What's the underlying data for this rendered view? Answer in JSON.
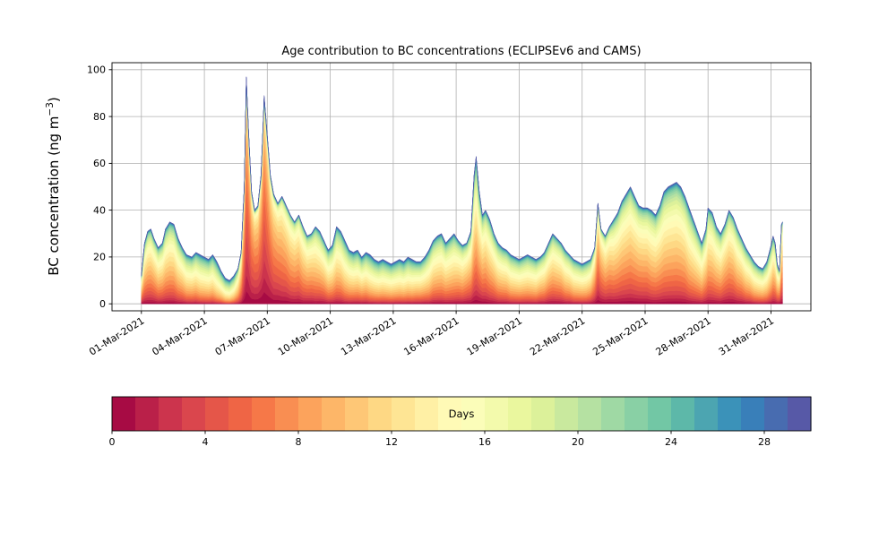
{
  "chart_data": {
    "type": "area",
    "subtype": "stacked-area-by-age",
    "title": "Age contribution to BC concentrations (ECLIPSEv6 and CAMS)",
    "xlabel": "",
    "ylabel": "BC concentration (ng m−3)",
    "ylabel_parts": {
      "prefix": "BC concentration (ng m",
      "sup": "−3",
      "suffix": ")"
    },
    "ylim": [
      -3,
      103
    ],
    "xlim_days": [
      -1.4,
      31.9
    ],
    "yticks": [
      0,
      20,
      40,
      60,
      80,
      100
    ],
    "xtick_days": [
      0,
      3,
      6,
      9,
      12,
      15,
      18,
      21,
      24,
      27,
      30
    ],
    "xtick_labels": [
      "01-Mar-2021",
      "04-Mar-2021",
      "07-Mar-2021",
      "10-Mar-2021",
      "13-Mar-2021",
      "16-Mar-2021",
      "19-Mar-2021",
      "22-Mar-2021",
      "25-Mar-2021",
      "28-Mar-2021",
      "31-Mar-2021"
    ],
    "grid": true,
    "n_age_bins": 30,
    "age_bin_width_days": 1,
    "colormap_stops": [
      "#9e0142",
      "#d53e4f",
      "#f46d43",
      "#fdae61",
      "#fee08b",
      "#ffffbf",
      "#e6f598",
      "#abdda4",
      "#66c2a5",
      "#3288bd",
      "#5e4fa2"
    ],
    "colorbar": {
      "label": "Days",
      "vmin": 0,
      "vmax": 30,
      "segments": 30,
      "ticks": [
        0,
        4,
        8,
        12,
        16,
        20,
        24,
        28
      ],
      "orientation": "horizontal"
    },
    "keyframe_format": [
      "time_days_since_01_Mar_2021",
      "total_bc_ng_m3",
      "mean_age_days",
      "age_spread_days"
    ],
    "keyframes": [
      [
        0.0,
        12,
        10,
        7
      ],
      [
        0.15,
        26,
        10,
        7
      ],
      [
        0.3,
        31,
        10,
        7
      ],
      [
        0.45,
        32,
        10,
        7
      ],
      [
        0.6,
        28,
        10,
        7
      ],
      [
        0.8,
        24,
        11,
        7
      ],
      [
        1.0,
        26,
        11,
        7
      ],
      [
        1.15,
        32,
        11,
        7
      ],
      [
        1.35,
        35,
        11,
        7
      ],
      [
        1.55,
        34,
        11,
        7
      ],
      [
        1.75,
        28,
        12,
        7
      ],
      [
        1.95,
        24,
        12,
        7
      ],
      [
        2.15,
        21,
        13,
        7
      ],
      [
        2.4,
        20,
        13,
        7
      ],
      [
        2.6,
        22,
        13,
        7
      ],
      [
        2.8,
        21,
        14,
        7
      ],
      [
        3.0,
        20,
        14,
        7
      ],
      [
        3.2,
        19,
        14,
        7
      ],
      [
        3.4,
        21,
        14,
        7
      ],
      [
        3.6,
        18,
        15,
        7
      ],
      [
        3.8,
        14,
        15,
        7
      ],
      [
        4.0,
        11,
        16,
        7
      ],
      [
        4.2,
        10,
        16,
        7
      ],
      [
        4.4,
        12,
        15,
        7
      ],
      [
        4.6,
        15,
        12,
        6
      ],
      [
        4.75,
        22,
        9,
        5
      ],
      [
        4.9,
        50,
        6,
        4.5
      ],
      [
        5.0,
        97,
        5,
        4
      ],
      [
        5.1,
        75,
        5,
        4
      ],
      [
        5.25,
        48,
        6,
        4.5
      ],
      [
        5.4,
        40,
        6,
        5
      ],
      [
        5.55,
        42,
        6,
        5
      ],
      [
        5.7,
        55,
        5.5,
        4.5
      ],
      [
        5.85,
        89,
        5,
        4
      ],
      [
        6.0,
        72,
        5.5,
        4.5
      ],
      [
        6.15,
        55,
        6,
        5
      ],
      [
        6.3,
        47,
        7,
        5
      ],
      [
        6.5,
        43,
        7,
        5.5
      ],
      [
        6.7,
        46,
        8,
        5.5
      ],
      [
        6.9,
        42,
        8,
        6
      ],
      [
        7.1,
        38,
        9,
        6
      ],
      [
        7.3,
        35,
        9,
        6
      ],
      [
        7.5,
        38,
        9,
        6
      ],
      [
        7.7,
        33,
        10,
        6
      ],
      [
        7.9,
        29,
        10,
        6.5
      ],
      [
        8.1,
        30,
        10,
        6.5
      ],
      [
        8.3,
        33,
        11,
        6.5
      ],
      [
        8.5,
        31,
        11,
        7
      ],
      [
        8.7,
        27,
        11,
        7
      ],
      [
        8.9,
        23,
        12,
        7
      ],
      [
        9.1,
        25,
        12,
        7
      ],
      [
        9.3,
        33,
        12,
        7
      ],
      [
        9.5,
        31,
        12,
        7
      ],
      [
        9.7,
        27,
        13,
        7
      ],
      [
        9.9,
        23,
        13,
        7
      ],
      [
        10.1,
        22,
        13,
        7.5
      ],
      [
        10.3,
        23,
        13,
        7.5
      ],
      [
        10.5,
        20,
        13,
        7.5
      ],
      [
        10.7,
        22,
        13,
        7.5
      ],
      [
        10.9,
        21,
        14,
        7.5
      ],
      [
        11.1,
        19,
        14,
        7.5
      ],
      [
        11.3,
        18,
        14,
        7.5
      ],
      [
        11.5,
        19,
        14,
        7.5
      ],
      [
        11.7,
        18,
        14,
        7.5
      ],
      [
        11.9,
        17,
        14,
        7.5
      ],
      [
        12.1,
        18,
        14,
        7.5
      ],
      [
        12.3,
        19,
        14,
        7.5
      ],
      [
        12.5,
        18,
        14,
        7.5
      ],
      [
        12.7,
        20,
        14,
        7.5
      ],
      [
        12.9,
        19,
        14,
        7.5
      ],
      [
        13.1,
        18,
        13,
        7.5
      ],
      [
        13.3,
        18,
        13,
        7.5
      ],
      [
        13.5,
        20,
        13,
        7.5
      ],
      [
        13.7,
        23,
        13,
        7
      ],
      [
        13.9,
        27,
        12,
        7
      ],
      [
        14.1,
        29,
        12,
        7
      ],
      [
        14.3,
        30,
        12,
        7
      ],
      [
        14.5,
        26,
        12,
        7
      ],
      [
        14.7,
        28,
        12,
        7
      ],
      [
        14.9,
        30,
        12,
        7
      ],
      [
        15.1,
        27,
        11,
        7
      ],
      [
        15.3,
        25,
        11,
        7
      ],
      [
        15.5,
        26,
        10,
        7
      ],
      [
        15.7,
        31,
        10,
        7
      ],
      [
        15.85,
        55,
        10,
        7.5
      ],
      [
        15.95,
        63,
        10,
        8
      ],
      [
        16.1,
        48,
        10,
        8
      ],
      [
        16.25,
        38,
        10,
        7.5
      ],
      [
        16.4,
        40,
        10,
        7
      ],
      [
        16.6,
        36,
        11,
        7
      ],
      [
        16.8,
        30,
        11,
        7
      ],
      [
        17.0,
        26,
        12,
        7
      ],
      [
        17.2,
        24,
        12,
        7
      ],
      [
        17.4,
        23,
        12,
        7
      ],
      [
        17.6,
        21,
        13,
        7
      ],
      [
        17.8,
        20,
        13,
        7
      ],
      [
        18.0,
        19,
        13,
        7
      ],
      [
        18.2,
        20,
        13,
        7
      ],
      [
        18.4,
        21,
        13,
        7
      ],
      [
        18.6,
        20,
        13,
        7
      ],
      [
        18.8,
        19,
        13,
        7
      ],
      [
        19.0,
        20,
        12,
        7
      ],
      [
        19.2,
        22,
        12,
        7
      ],
      [
        19.4,
        26,
        11,
        7
      ],
      [
        19.6,
        30,
        11,
        7
      ],
      [
        19.8,
        28,
        11,
        7
      ],
      [
        20.0,
        26,
        11,
        7
      ],
      [
        20.2,
        23,
        12,
        7
      ],
      [
        20.4,
        21,
        12,
        7
      ],
      [
        20.6,
        19,
        13,
        7
      ],
      [
        20.8,
        18,
        13,
        7
      ],
      [
        21.0,
        17,
        13,
        7
      ],
      [
        21.2,
        18,
        13,
        7
      ],
      [
        21.4,
        19,
        12,
        7
      ],
      [
        21.6,
        24,
        9,
        6
      ],
      [
        21.75,
        43,
        7,
        6
      ],
      [
        21.9,
        32,
        8,
        6
      ],
      [
        22.1,
        29,
        9,
        6.5
      ],
      [
        22.3,
        33,
        9,
        6.5
      ],
      [
        22.5,
        36,
        10,
        7
      ],
      [
        22.7,
        39,
        10,
        7
      ],
      [
        22.9,
        44,
        10,
        7
      ],
      [
        23.1,
        47,
        10,
        7
      ],
      [
        23.3,
        50,
        10,
        7
      ],
      [
        23.5,
        46,
        10,
        7
      ],
      [
        23.7,
        42,
        10,
        7
      ],
      [
        23.9,
        41,
        10,
        7
      ],
      [
        24.1,
        41,
        10,
        7
      ],
      [
        24.3,
        40,
        11,
        7
      ],
      [
        24.5,
        38,
        11,
        7
      ],
      [
        24.7,
        42,
        11,
        7
      ],
      [
        24.9,
        48,
        11,
        7
      ],
      [
        25.1,
        50,
        11,
        7
      ],
      [
        25.3,
        51,
        11,
        7
      ],
      [
        25.5,
        52,
        11,
        7
      ],
      [
        25.7,
        50,
        11,
        7
      ],
      [
        25.9,
        46,
        11,
        7
      ],
      [
        26.1,
        41,
        12,
        7
      ],
      [
        26.3,
        36,
        12,
        7
      ],
      [
        26.5,
        31,
        12,
        7
      ],
      [
        26.7,
        26,
        12,
        7
      ],
      [
        26.9,
        32,
        11,
        7
      ],
      [
        27.0,
        41,
        11,
        7
      ],
      [
        27.2,
        39,
        11,
        7
      ],
      [
        27.4,
        33,
        11,
        7
      ],
      [
        27.6,
        30,
        11,
        7
      ],
      [
        27.8,
        34,
        10,
        7
      ],
      [
        28.0,
        40,
        10,
        7
      ],
      [
        28.2,
        37,
        10,
        7
      ],
      [
        28.4,
        32,
        11,
        7
      ],
      [
        28.6,
        28,
        11,
        7
      ],
      [
        28.8,
        24,
        12,
        7
      ],
      [
        29.0,
        21,
        12,
        7
      ],
      [
        29.2,
        18,
        13,
        7
      ],
      [
        29.4,
        16,
        13,
        7
      ],
      [
        29.6,
        15,
        13,
        7
      ],
      [
        29.8,
        18,
        13,
        7
      ],
      [
        30.0,
        25,
        12,
        7
      ],
      [
        30.1,
        29,
        11,
        7
      ],
      [
        30.2,
        26,
        11,
        7
      ],
      [
        30.3,
        17,
        11,
        7
      ],
      [
        30.4,
        14,
        10,
        6.5
      ],
      [
        30.5,
        34,
        9,
        6
      ],
      [
        30.55,
        35,
        9,
        6
      ]
    ]
  }
}
